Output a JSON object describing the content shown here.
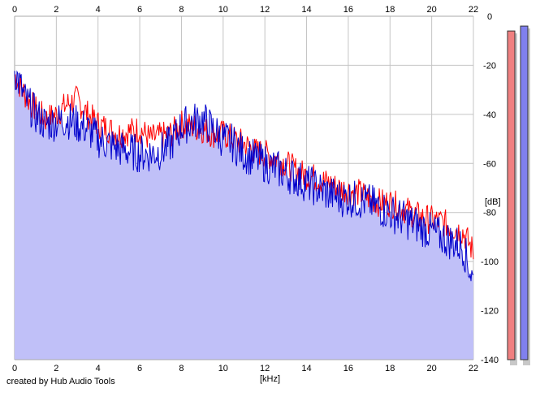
{
  "footer": {
    "credit": "created by Hub Audio Tools"
  },
  "chart_data": {
    "type": "line",
    "xlabel": "[kHz]",
    "ylabel": "[dB]",
    "xlim": [
      0,
      22
    ],
    "ylim": [
      -140,
      0
    ],
    "x_ticks": [
      0,
      2,
      4,
      6,
      8,
      10,
      12,
      14,
      16,
      18,
      20,
      22
    ],
    "y_ticks": [
      0,
      -20,
      -40,
      -60,
      -80,
      -100,
      -120,
      -140
    ],
    "grid": true,
    "colors": {
      "plot_background": "#ffffff",
      "area_fill": "#c0c0f8",
      "grid": "#c4c4c4",
      "red": "#ff0000",
      "blue": "#0000cc",
      "level_left": "#f08080",
      "level_right": "#8080ee"
    },
    "x": [
      0,
      0.5,
      1,
      1.5,
      2,
      2.5,
      3,
      3.5,
      4,
      4.5,
      5,
      5.5,
      6,
      6.5,
      7,
      7.5,
      8,
      8.5,
      9,
      9.5,
      10,
      10.5,
      11,
      11.5,
      12,
      12.5,
      13,
      13.5,
      14,
      14.5,
      15,
      15.5,
      16,
      16.5,
      17,
      17.5,
      18,
      18.5,
      19,
      19.5,
      20,
      20.5,
      21,
      21.5,
      22
    ],
    "series": [
      {
        "values": [
          -24,
          -32,
          -38,
          -42,
          -40,
          -36,
          -34,
          -40,
          -44,
          -46,
          -48,
          -47,
          -46,
          -50,
          -49,
          -48,
          -44,
          -45,
          -46,
          -48,
          -48,
          -50,
          -52,
          -55,
          -56,
          -58,
          -60,
          -63,
          -65,
          -66,
          -68,
          -70,
          -71,
          -72,
          -74,
          -76,
          -76,
          -78,
          -80,
          -82,
          -83,
          -84,
          -86,
          -88,
          -96
        ],
        "color": "#ff0000"
      },
      {
        "values": [
          -22,
          -34,
          -40,
          -44,
          -43,
          -42,
          -44,
          -46,
          -50,
          -52,
          -54,
          -55,
          -56,
          -56,
          -55,
          -52,
          -45,
          -43,
          -42,
          -46,
          -50,
          -52,
          -56,
          -58,
          -60,
          -62,
          -64,
          -66,
          -68,
          -70,
          -72,
          -74,
          -74,
          -75,
          -76,
          -78,
          -80,
          -82,
          -84,
          -86,
          -88,
          -90,
          -92,
          -94,
          -108
        ],
        "color": "#0000cc"
      }
    ],
    "level_meters": [
      {
        "value_db": -6
      },
      {
        "value_db": -4
      }
    ]
  }
}
